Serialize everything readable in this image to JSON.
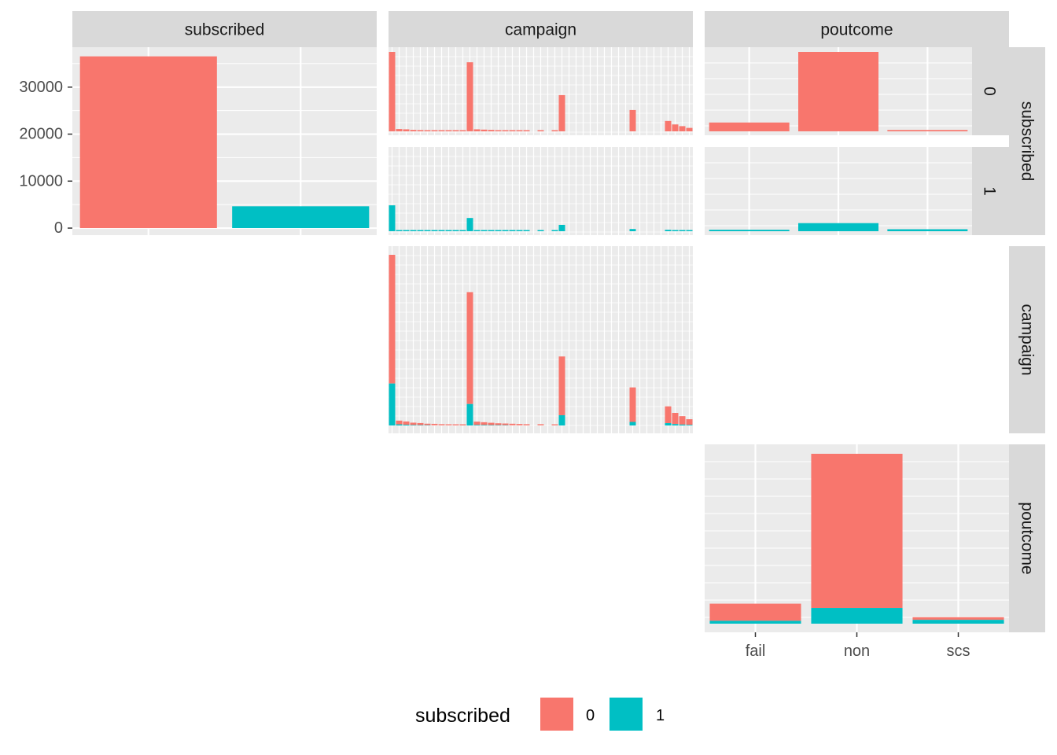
{
  "chart_data": {
    "type": "bar",
    "layout": "ggpairs scatterplot matrix of bar charts",
    "variables": [
      "subscribed",
      "campaign",
      "poutcome"
    ],
    "colors": {
      "0": "#F8766D",
      "1": "#00BFC4",
      "panel_bg": "#EBEBEB",
      "strip_bg": "#D9D9D9"
    },
    "y_axis": {
      "ticks": [
        0,
        10000,
        20000,
        30000
      ],
      "tick_labels": [
        "0",
        "10000",
        "20000",
        "30000"
      ],
      "ylim": [
        -1500,
        38500
      ]
    },
    "subscribed_counts": {
      "categories": [
        "0",
        "1"
      ],
      "values": [
        36548,
        4640
      ]
    },
    "poutcome": {
      "categories": [
        "fail",
        "non",
        "scs"
      ],
      "series": [
        {
          "name": "0",
          "values": [
            3600,
            32400,
            550
          ]
        },
        {
          "name": "1",
          "values": [
            600,
            3300,
            800
          ]
        }
      ]
    },
    "campaign": {
      "bins": 43,
      "series": [
        {
          "name": "0",
          "values": [
            13800,
            400,
            350,
            250,
            220,
            160,
            150,
            120,
            110,
            100,
            80,
            12000,
            350,
            300,
            250,
            200,
            180,
            160,
            140,
            120,
            0,
            120,
            0,
            70,
            6300,
            0,
            0,
            0,
            0,
            0,
            0,
            0,
            0,
            0,
            3700,
            0,
            0,
            0,
            0,
            1800,
            1200,
            900,
            600
          ]
        },
        {
          "name": "1",
          "values": [
            4500,
            120,
            80,
            50,
            40,
            30,
            25,
            20,
            20,
            15,
            10,
            2300,
            60,
            50,
            40,
            35,
            30,
            25,
            20,
            18,
            0,
            20,
            0,
            15,
            1100,
            0,
            0,
            0,
            0,
            0,
            0,
            0,
            0,
            0,
            380,
            0,
            0,
            0,
            0,
            250,
            150,
            100,
            70
          ]
        }
      ]
    },
    "row_strips": [
      "subscribed",
      "campaign",
      "poutcome"
    ],
    "row_sub_strips": [
      "0",
      "1"
    ],
    "x_tick_labels_bottom": [
      "fail",
      "non",
      "scs"
    ],
    "legend": {
      "title": "subscribed",
      "labels": [
        "0",
        "1"
      ],
      "position": "bottom"
    }
  }
}
